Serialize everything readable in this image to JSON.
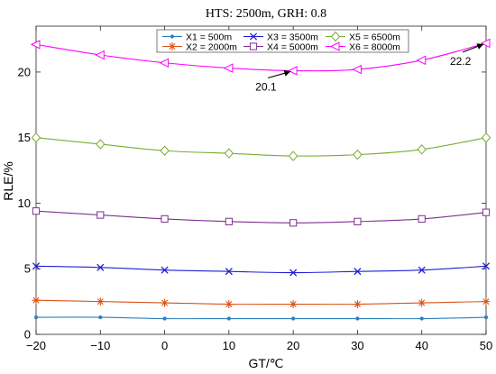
{
  "chart_data": {
    "type": "line",
    "title": "HTS: 2500m, GRH: 0.8",
    "xlabel": "GT/℃",
    "ylabel": "RLE/%",
    "x": [
      -20,
      -10,
      0,
      10,
      20,
      30,
      40,
      50
    ],
    "xlim": [
      -20,
      50
    ],
    "ylim": [
      0,
      23.5
    ],
    "xticks": [
      -20,
      -10,
      0,
      10,
      20,
      30,
      40,
      50
    ],
    "yticks": [
      0,
      5,
      10,
      15,
      20
    ],
    "grid": false,
    "legend_position": "top",
    "series": [
      {
        "name": "X1 = 500m",
        "color": "#2e7fbd",
        "marker": "dot",
        "values": [
          1.3,
          1.3,
          1.2,
          1.2,
          1.2,
          1.2,
          1.2,
          1.3
        ]
      },
      {
        "name": "X2 = 2000m",
        "color": "#d9541a",
        "marker": "asterisk",
        "values": [
          2.6,
          2.5,
          2.4,
          2.3,
          2.3,
          2.3,
          2.4,
          2.5
        ]
      },
      {
        "name": "X3 = 3500m",
        "color": "#1f1fd6",
        "marker": "x",
        "values": [
          5.2,
          5.1,
          4.9,
          4.8,
          4.7,
          4.8,
          4.9,
          5.2
        ]
      },
      {
        "name": "X4 = 5000m",
        "color": "#7e2f8e",
        "marker": "square",
        "values": [
          9.4,
          9.1,
          8.8,
          8.6,
          8.5,
          8.6,
          8.8,
          9.3
        ]
      },
      {
        "name": "X5 = 6500m",
        "color": "#77ac30",
        "marker": "diamond",
        "values": [
          15.0,
          14.5,
          14.0,
          13.8,
          13.6,
          13.7,
          14.1,
          15.0
        ]
      },
      {
        "name": "X6 = 8000m",
        "color": "#ff00ff",
        "marker": "triangle-left",
        "values": [
          22.1,
          21.3,
          20.7,
          20.3,
          20.1,
          20.2,
          20.9,
          22.2
        ]
      }
    ],
    "annotations": [
      {
        "text": "20.1",
        "x": 20,
        "y": 20.1
      },
      {
        "text": "22.2",
        "x": 50,
        "y": 22.2
      }
    ]
  }
}
